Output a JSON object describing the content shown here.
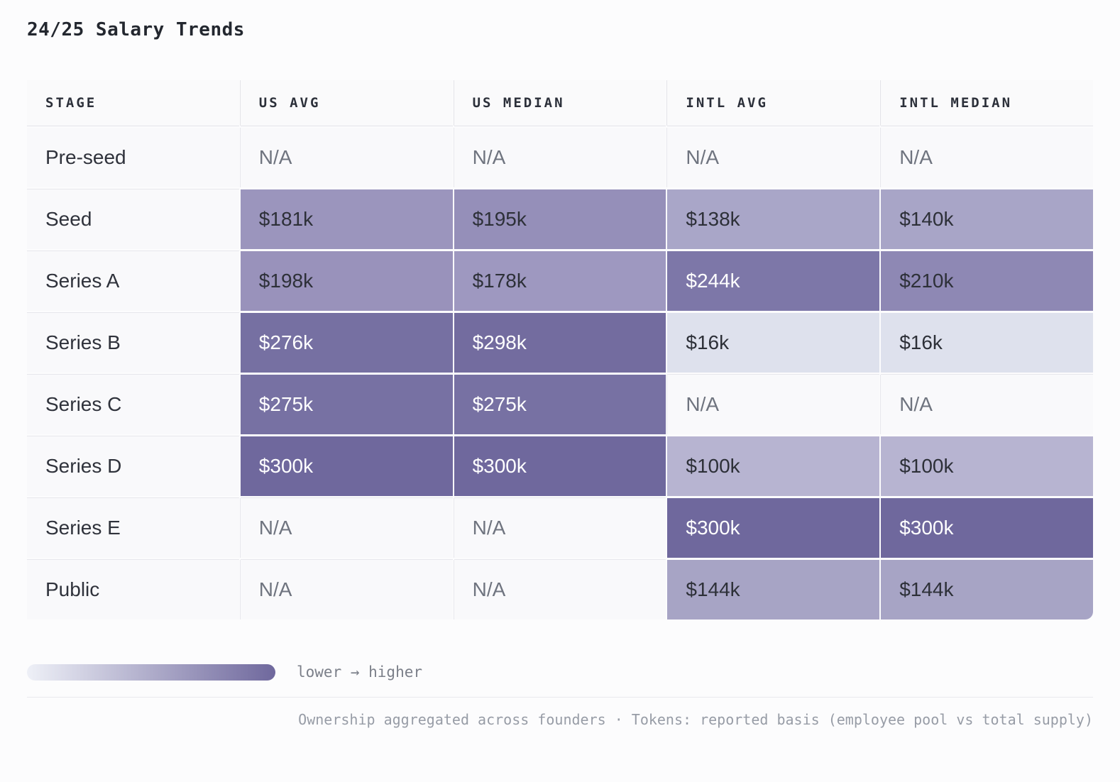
{
  "title": "24/25 Salary Trends",
  "table": {
    "columns": [
      "STAGE",
      "US AVG",
      "US MEDIAN",
      "INTL AVG",
      "INTL MEDIAN"
    ],
    "rows": [
      {
        "stage": "Pre-seed",
        "cells": [
          {
            "value": "N/A",
            "bg": null,
            "text": "na"
          },
          {
            "value": "N/A",
            "bg": null,
            "text": "na"
          },
          {
            "value": "N/A",
            "bg": null,
            "text": "na"
          },
          {
            "value": "N/A",
            "bg": null,
            "text": "na"
          }
        ]
      },
      {
        "stage": "Seed",
        "cells": [
          {
            "value": "$181k",
            "bg": "#9b95bd",
            "text": "dark"
          },
          {
            "value": "$195k",
            "bg": "#958fb9",
            "text": "dark"
          },
          {
            "value": "$138k",
            "bg": "#a9a6c8",
            "text": "dark"
          },
          {
            "value": "$140k",
            "bg": "#a8a5c7",
            "text": "dark"
          }
        ]
      },
      {
        "stage": "Series A",
        "cells": [
          {
            "value": "$198k",
            "bg": "#9992bb",
            "text": "dark"
          },
          {
            "value": "$178k",
            "bg": "#9e98c0",
            "text": "dark"
          },
          {
            "value": "$244k",
            "bg": "#7d77a8",
            "text": "light"
          },
          {
            "value": "$210k",
            "bg": "#8e88b4",
            "text": "dark"
          }
        ]
      },
      {
        "stage": "Series B",
        "cells": [
          {
            "value": "$276k",
            "bg": "#7670a2",
            "text": "light"
          },
          {
            "value": "$298k",
            "bg": "#736c9f",
            "text": "light"
          },
          {
            "value": "$16k",
            "bg": "#dee1ed",
            "text": "dark"
          },
          {
            "value": "$16k",
            "bg": "#dee1ed",
            "text": "dark"
          }
        ]
      },
      {
        "stage": "Series C",
        "cells": [
          {
            "value": "$275k",
            "bg": "#7771a3",
            "text": "light"
          },
          {
            "value": "$275k",
            "bg": "#7771a3",
            "text": "light"
          },
          {
            "value": "N/A",
            "bg": null,
            "text": "na"
          },
          {
            "value": "N/A",
            "bg": null,
            "text": "na"
          }
        ]
      },
      {
        "stage": "Series D",
        "cells": [
          {
            "value": "$300k",
            "bg": "#6f689d",
            "text": "light"
          },
          {
            "value": "$300k",
            "bg": "#6f689d",
            "text": "light"
          },
          {
            "value": "$100k",
            "bg": "#b7b4d1",
            "text": "dark"
          },
          {
            "value": "$100k",
            "bg": "#b7b4d1",
            "text": "dark"
          }
        ]
      },
      {
        "stage": "Series E",
        "cells": [
          {
            "value": "N/A",
            "bg": null,
            "text": "na"
          },
          {
            "value": "N/A",
            "bg": null,
            "text": "na"
          },
          {
            "value": "$300k",
            "bg": "#6f689d",
            "text": "light"
          },
          {
            "value": "$300k",
            "bg": "#6f689d",
            "text": "light"
          }
        ]
      },
      {
        "stage": "Public",
        "cells": [
          {
            "value": "N/A",
            "bg": null,
            "text": "na"
          },
          {
            "value": "N/A",
            "bg": null,
            "text": "na"
          },
          {
            "value": "$144k",
            "bg": "#a7a4c5",
            "text": "dark"
          },
          {
            "value": "$144k",
            "bg": "#a7a4c5",
            "text": "dark"
          }
        ]
      }
    ]
  },
  "legend": {
    "label": "lower → higher",
    "gradient_from": "#eef0f7",
    "gradient_to": "#6f689d"
  },
  "footer": {
    "note": "Ownership aggregated across founders · Tokens: reported basis (employee pool vs total supply)"
  },
  "chart_data": {
    "type": "heatmap",
    "title": "24/25 Salary Trends",
    "categories": [
      "Pre-seed",
      "Seed",
      "Series A",
      "Series B",
      "Series C",
      "Series D",
      "Series E",
      "Public"
    ],
    "series": [
      {
        "name": "US AVG",
        "values": [
          null,
          181,
          198,
          276,
          275,
          300,
          null,
          null
        ]
      },
      {
        "name": "US MEDIAN",
        "values": [
          null,
          195,
          178,
          298,
          275,
          300,
          null,
          null
        ]
      },
      {
        "name": "INTL AVG",
        "values": [
          null,
          138,
          244,
          16,
          null,
          100,
          300,
          144
        ]
      },
      {
        "name": "INTL MEDIAN",
        "values": [
          null,
          140,
          210,
          16,
          null,
          100,
          300,
          144
        ]
      }
    ],
    "units": "$k USD",
    "missing_label": "N/A",
    "legend": "lower → higher",
    "legend_position": "bottom-left",
    "color_scale": {
      "low": "#eef0f7",
      "high": "#6f689d"
    }
  }
}
